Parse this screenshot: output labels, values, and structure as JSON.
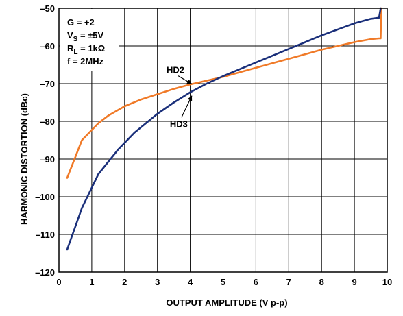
{
  "chart_data": {
    "type": "line",
    "title": "",
    "xlabel": "OUTPUT AMPLITUDE (V p-p)",
    "ylabel": "HARMONIC DISTORTION (dBc)",
    "xlim": [
      0,
      10
    ],
    "ylim": [
      -120,
      -50
    ],
    "xticks": [
      "0",
      "1",
      "2",
      "3",
      "4",
      "5",
      "6",
      "7",
      "8",
      "9",
      "10"
    ],
    "yticks": [
      "–50",
      "–60",
      "–70",
      "–80",
      "–90",
      "–100",
      "–110",
      "–120"
    ],
    "grid": true,
    "conditions": {
      "gain": "G = +2",
      "vs_prefix": "V",
      "vs_sub": "S",
      "vs_value": " = ±5V",
      "rl_prefix": "R",
      "rl_sub": "L",
      "rl_value": " = 1kΩ",
      "freq": "f = 2MHz"
    },
    "colors": {
      "HD2": "#f07a28",
      "HD3": "#1a2f7a"
    },
    "series": [
      {
        "name": "HD2",
        "x": [
          0.25,
          0.7,
          1.2,
          1.5,
          2.0,
          2.5,
          3.0,
          3.5,
          4.0,
          4.5,
          5.0,
          5.5,
          6.0,
          6.5,
          7.0,
          7.5,
          8.0,
          8.5,
          9.0,
          9.5,
          9.75,
          9.8,
          9.82
        ],
        "y": [
          -95,
          -85,
          -80.5,
          -78.5,
          -76,
          -74.2,
          -72.8,
          -71.4,
          -70.2,
          -69.2,
          -68.2,
          -67,
          -65.8,
          -64.6,
          -63.4,
          -62.2,
          -61,
          -60,
          -59,
          -58.2,
          -58,
          -58,
          -50
        ]
      },
      {
        "name": "HD3",
        "x": [
          0.25,
          0.7,
          1.2,
          1.8,
          2.3,
          3.0,
          3.5,
          4.0,
          4.5,
          5.0,
          5.5,
          6.0,
          6.5,
          7.0,
          7.5,
          8.0,
          8.5,
          9.0,
          9.5,
          9.75,
          9.8
        ],
        "y": [
          -114,
          -103,
          -94,
          -87.5,
          -83,
          -78,
          -75,
          -72.3,
          -70,
          -68,
          -66.2,
          -64.4,
          -62.6,
          -60.8,
          -59,
          -57.2,
          -55.6,
          -54,
          -52.8,
          -52.5,
          -50
        ]
      }
    ],
    "annotations": [
      {
        "text": "HD2",
        "x": 3.55,
        "y": -67.2,
        "arrow_to": [
          4.05,
          -70.1
        ]
      },
      {
        "text": "HD3",
        "x": 3.65,
        "y": -81.5,
        "arrow_to": [
          4.05,
          -73.2
        ]
      }
    ]
  }
}
